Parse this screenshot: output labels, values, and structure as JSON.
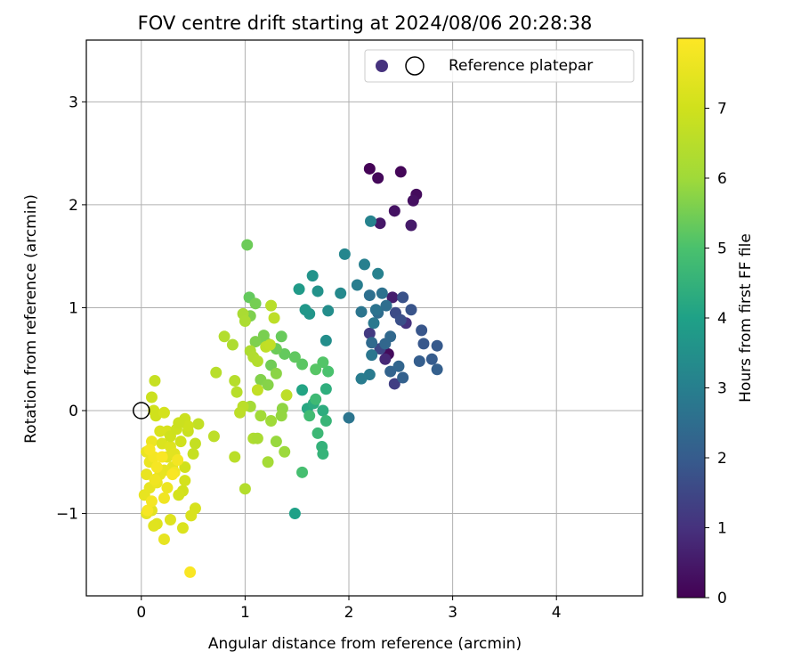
{
  "chart_data": {
    "type": "scatter",
    "title": "FOV centre drift starting at 2024/08/06 20:28:38",
    "xlabel": "Angular distance from reference (arcmin)",
    "ylabel": "Rotation from reference (arcmin)",
    "xlim": [
      -0.53,
      4.83
    ],
    "ylim": [
      -1.8,
      3.6
    ],
    "xticks": [
      0,
      1,
      2,
      3,
      4
    ],
    "yticks": [
      -1,
      0,
      1,
      2,
      3
    ],
    "grid": true,
    "legend": {
      "placement": "top-right",
      "entries": [
        "Reference platepar"
      ]
    },
    "colorbar": {
      "label": "Hours from first FF file",
      "min": 0,
      "max": 8,
      "ticks": [
        0,
        1,
        2,
        3,
        4,
        5,
        6,
        7
      ],
      "colormap": "viridis"
    },
    "reference_point": {
      "x": 0,
      "y": 0
    },
    "series": [
      {
        "values": [
          {
            "x": 2.2,
            "y": 2.35,
            "c": 0.05
          },
          {
            "x": 2.5,
            "y": 2.32,
            "c": 0.1
          },
          {
            "x": 2.28,
            "y": 2.26,
            "c": 0.15
          },
          {
            "x": 2.65,
            "y": 2.1,
            "c": 0.2
          },
          {
            "x": 2.62,
            "y": 2.04,
            "c": 0.3
          },
          {
            "x": 2.44,
            "y": 1.94,
            "c": 0.35
          },
          {
            "x": 2.3,
            "y": 1.82,
            "c": 0.45
          },
          {
            "x": 2.6,
            "y": 1.8,
            "c": 0.5
          },
          {
            "x": 2.38,
            "y": 0.55,
            "c": 0.2
          },
          {
            "x": 2.42,
            "y": 1.1,
            "c": 0.6
          },
          {
            "x": 2.35,
            "y": 0.5,
            "c": 0.8
          },
          {
            "x": 2.55,
            "y": 0.85,
            "c": 1.0
          },
          {
            "x": 2.2,
            "y": 0.75,
            "c": 1.2
          },
          {
            "x": 2.44,
            "y": 0.26,
            "c": 1.3
          },
          {
            "x": 2.3,
            "y": 0.6,
            "c": 1.5
          },
          {
            "x": 2.45,
            "y": 0.95,
            "c": 1.6
          },
          {
            "x": 2.5,
            "y": 0.88,
            "c": 1.7
          },
          {
            "x": 2.52,
            "y": 1.1,
            "c": 1.75
          },
          {
            "x": 2.6,
            "y": 0.98,
            "c": 1.8
          },
          {
            "x": 2.7,
            "y": 0.78,
            "c": 1.85
          },
          {
            "x": 2.72,
            "y": 0.65,
            "c": 1.9
          },
          {
            "x": 2.85,
            "y": 0.63,
            "c": 1.95
          },
          {
            "x": 2.8,
            "y": 0.5,
            "c": 2.0
          },
          {
            "x": 2.68,
            "y": 0.48,
            "c": 2.05
          },
          {
            "x": 2.85,
            "y": 0.4,
            "c": 2.1
          },
          {
            "x": 2.52,
            "y": 0.32,
            "c": 2.15
          },
          {
            "x": 2.4,
            "y": 0.38,
            "c": 2.2
          },
          {
            "x": 2.48,
            "y": 0.43,
            "c": 2.25
          },
          {
            "x": 2.35,
            "y": 0.65,
            "c": 2.3
          },
          {
            "x": 2.4,
            "y": 0.72,
            "c": 2.35
          },
          {
            "x": 2.22,
            "y": 0.66,
            "c": 2.4
          },
          {
            "x": 2.28,
            "y": 0.95,
            "c": 2.45
          },
          {
            "x": 2.36,
            "y": 1.02,
            "c": 2.5
          },
          {
            "x": 2.2,
            "y": 1.12,
            "c": 2.55
          },
          {
            "x": 2.32,
            "y": 1.14,
            "c": 2.6
          },
          {
            "x": 2.26,
            "y": 0.98,
            "c": 2.65
          },
          {
            "x": 2.12,
            "y": 0.96,
            "c": 2.7
          },
          {
            "x": 2.22,
            "y": 0.54,
            "c": 2.75
          },
          {
            "x": 2.24,
            "y": 0.85,
            "c": 2.8
          },
          {
            "x": 2.2,
            "y": 0.35,
            "c": 2.85
          },
          {
            "x": 2.12,
            "y": 0.31,
            "c": 2.9
          },
          {
            "x": 2.0,
            "y": -0.07,
            "c": 2.7
          },
          {
            "x": 2.08,
            "y": 1.22,
            "c": 2.95
          },
          {
            "x": 2.15,
            "y": 1.42,
            "c": 3.0
          },
          {
            "x": 2.28,
            "y": 1.33,
            "c": 3.05
          },
          {
            "x": 2.21,
            "y": 1.84,
            "c": 3.1
          },
          {
            "x": 1.96,
            "y": 1.52,
            "c": 3.2
          },
          {
            "x": 1.92,
            "y": 1.14,
            "c": 3.3
          },
          {
            "x": 1.8,
            "y": 0.97,
            "c": 3.4
          },
          {
            "x": 1.78,
            "y": 0.68,
            "c": 3.45
          },
          {
            "x": 1.7,
            "y": 1.16,
            "c": 3.55
          },
          {
            "x": 1.65,
            "y": 1.31,
            "c": 3.6
          },
          {
            "x": 1.62,
            "y": 0.94,
            "c": 3.65
          },
          {
            "x": 1.58,
            "y": 0.98,
            "c": 3.7
          },
          {
            "x": 1.52,
            "y": 1.18,
            "c": 3.8
          },
          {
            "x": 1.48,
            "y": -1.0,
            "c": 4.0
          },
          {
            "x": 1.55,
            "y": 0.2,
            "c": 4.1
          },
          {
            "x": 1.6,
            "y": 0.02,
            "c": 4.2
          },
          {
            "x": 1.66,
            "y": 0.07,
            "c": 4.3
          },
          {
            "x": 1.75,
            "y": 0.0,
            "c": 4.35
          },
          {
            "x": 1.78,
            "y": 0.21,
            "c": 4.4
          },
          {
            "x": 1.74,
            "y": -0.35,
            "c": 4.5
          },
          {
            "x": 1.75,
            "y": -0.42,
            "c": 4.55
          },
          {
            "x": 1.78,
            "y": -0.1,
            "c": 4.6
          },
          {
            "x": 1.7,
            "y": -0.22,
            "c": 4.7
          },
          {
            "x": 1.68,
            "y": 0.11,
            "c": 4.75
          },
          {
            "x": 1.62,
            "y": -0.05,
            "c": 4.8
          },
          {
            "x": 1.55,
            "y": -0.6,
            "c": 4.9
          },
          {
            "x": 1.8,
            "y": 0.38,
            "c": 5.0
          },
          {
            "x": 1.75,
            "y": 0.47,
            "c": 5.1
          },
          {
            "x": 1.68,
            "y": 0.4,
            "c": 5.15
          },
          {
            "x": 1.55,
            "y": 0.45,
            "c": 5.2
          },
          {
            "x": 1.48,
            "y": 0.52,
            "c": 5.25
          },
          {
            "x": 1.38,
            "y": 0.55,
            "c": 5.3
          },
          {
            "x": 1.35,
            "y": 0.72,
            "c": 5.35
          },
          {
            "x": 1.3,
            "y": 0.6,
            "c": 5.4
          },
          {
            "x": 1.25,
            "y": 0.44,
            "c": 5.45
          },
          {
            "x": 1.2,
            "y": 0.66,
            "c": 5.5
          },
          {
            "x": 1.18,
            "y": 0.73,
            "c": 5.55
          },
          {
            "x": 1.1,
            "y": 0.67,
            "c": 5.6
          },
          {
            "x": 1.15,
            "y": 0.3,
            "c": 5.65
          },
          {
            "x": 1.22,
            "y": 0.25,
            "c": 5.7
          },
          {
            "x": 1.3,
            "y": 0.36,
            "c": 5.75
          },
          {
            "x": 1.36,
            "y": 0.02,
            "c": 5.8
          },
          {
            "x": 1.35,
            "y": -0.05,
            "c": 5.85
          },
          {
            "x": 1.3,
            "y": -0.3,
            "c": 5.9
          },
          {
            "x": 1.38,
            "y": -0.4,
            "c": 5.95
          },
          {
            "x": 1.25,
            "y": -0.1,
            "c": 6.0
          },
          {
            "x": 1.15,
            "y": -0.05,
            "c": 6.05
          },
          {
            "x": 1.05,
            "y": 0.04,
            "c": 6.1
          },
          {
            "x": 1.02,
            "y": 1.61,
            "c": 5.4
          },
          {
            "x": 1.04,
            "y": 1.1,
            "c": 5.3
          },
          {
            "x": 1.1,
            "y": 1.04,
            "c": 5.5
          },
          {
            "x": 1.05,
            "y": 0.92,
            "c": 5.6
          },
          {
            "x": 0.98,
            "y": 0.94,
            "c": 6.2
          },
          {
            "x": 1.0,
            "y": 0.87,
            "c": 6.25
          },
          {
            "x": 1.05,
            "y": 0.58,
            "c": 6.3
          },
          {
            "x": 1.08,
            "y": 0.52,
            "c": 6.35
          },
          {
            "x": 1.12,
            "y": 0.48,
            "c": 6.4
          },
          {
            "x": 0.88,
            "y": 0.64,
            "c": 6.3
          },
          {
            "x": 0.8,
            "y": 0.72,
            "c": 6.4
          },
          {
            "x": 0.72,
            "y": 0.37,
            "c": 6.5
          },
          {
            "x": 0.9,
            "y": 0.29,
            "c": 6.45
          },
          {
            "x": 0.92,
            "y": 0.18,
            "c": 6.5
          },
          {
            "x": 0.98,
            "y": 0.04,
            "c": 6.55
          },
          {
            "x": 0.95,
            "y": -0.02,
            "c": 6.6
          },
          {
            "x": 0.9,
            "y": -0.45,
            "c": 6.55
          },
          {
            "x": 1.0,
            "y": -0.76,
            "c": 6.4
          },
          {
            "x": 1.08,
            "y": -0.27,
            "c": 6.3
          },
          {
            "x": 1.12,
            "y": -0.27,
            "c": 6.2
          },
          {
            "x": 1.22,
            "y": -0.5,
            "c": 6.1
          },
          {
            "x": 1.25,
            "y": 1.02,
            "c": 6.5
          },
          {
            "x": 1.28,
            "y": 0.9,
            "c": 6.6
          },
          {
            "x": 1.2,
            "y": 0.62,
            "c": 6.65
          },
          {
            "x": 1.24,
            "y": 0.64,
            "c": 6.7
          },
          {
            "x": 1.4,
            "y": 0.15,
            "c": 6.6
          },
          {
            "x": 1.12,
            "y": 0.2,
            "c": 6.7
          },
          {
            "x": 0.7,
            "y": -0.25,
            "c": 6.6
          },
          {
            "x": 0.55,
            "y": -0.13,
            "c": 6.7
          },
          {
            "x": 0.52,
            "y": -0.32,
            "c": 6.75
          },
          {
            "x": 0.5,
            "y": -0.42,
            "c": 6.8
          },
          {
            "x": 0.45,
            "y": -0.2,
            "c": 6.85
          },
          {
            "x": 0.42,
            "y": -0.08,
            "c": 6.9
          },
          {
            "x": 0.45,
            "y": -0.15,
            "c": 6.95
          },
          {
            "x": 0.38,
            "y": -0.3,
            "c": 7.0
          },
          {
            "x": 0.42,
            "y": -0.55,
            "c": 7.0
          },
          {
            "x": 0.4,
            "y": -0.78,
            "c": 7.05
          },
          {
            "x": 0.36,
            "y": -0.82,
            "c": 7.1
          },
          {
            "x": 0.42,
            "y": -0.68,
            "c": 7.1
          },
          {
            "x": 0.52,
            "y": -0.95,
            "c": 7.15
          },
          {
            "x": 0.48,
            "y": -1.02,
            "c": 7.2
          },
          {
            "x": 0.4,
            "y": -1.14,
            "c": 7.25
          },
          {
            "x": 0.28,
            "y": -1.06,
            "c": 7.3
          },
          {
            "x": 0.15,
            "y": -1.1,
            "c": 7.3
          },
          {
            "x": 0.12,
            "y": -1.12,
            "c": 7.35
          },
          {
            "x": 0.1,
            "y": -0.97,
            "c": 7.4
          },
          {
            "x": 0.05,
            "y": -1.0,
            "c": 7.45
          },
          {
            "x": 0.03,
            "y": -0.82,
            "c": 7.5
          },
          {
            "x": 0.08,
            "y": -0.75,
            "c": 7.5
          },
          {
            "x": 0.05,
            "y": -0.62,
            "c": 7.55
          },
          {
            "x": 0.08,
            "y": -0.5,
            "c": 7.6
          },
          {
            "x": 0.05,
            "y": -0.4,
            "c": 7.6
          },
          {
            "x": 0.1,
            "y": -0.3,
            "c": 7.65
          },
          {
            "x": 0.14,
            "y": -0.05,
            "c": 7.0
          },
          {
            "x": 0.12,
            "y": 0.0,
            "c": 7.0
          },
          {
            "x": 0.1,
            "y": 0.13,
            "c": 6.9
          },
          {
            "x": 0.13,
            "y": 0.29,
            "c": 6.8
          },
          {
            "x": 0.22,
            "y": -0.02,
            "c": 7.1
          },
          {
            "x": 0.25,
            "y": -0.2,
            "c": 7.15
          },
          {
            "x": 0.18,
            "y": -0.2,
            "c": 7.2
          },
          {
            "x": 0.2,
            "y": -0.32,
            "c": 7.25
          },
          {
            "x": 0.28,
            "y": -0.35,
            "c": 7.3
          },
          {
            "x": 0.25,
            "y": -0.45,
            "c": 7.35
          },
          {
            "x": 0.32,
            "y": -0.42,
            "c": 7.4
          },
          {
            "x": 0.3,
            "y": -0.55,
            "c": 7.45
          },
          {
            "x": 0.22,
            "y": -0.58,
            "c": 7.5
          },
          {
            "x": 0.18,
            "y": -0.62,
            "c": 7.55
          },
          {
            "x": 0.15,
            "y": -0.7,
            "c": 7.6
          },
          {
            "x": 0.25,
            "y": -0.75,
            "c": 7.65
          },
          {
            "x": 0.22,
            "y": -0.85,
            "c": 7.7
          },
          {
            "x": 0.32,
            "y": -0.6,
            "c": 7.75
          },
          {
            "x": 0.35,
            "y": -0.48,
            "c": 7.8
          },
          {
            "x": 0.12,
            "y": -0.45,
            "c": 7.8
          },
          {
            "x": 0.08,
            "y": -0.38,
            "c": 7.85
          },
          {
            "x": 0.15,
            "y": -0.55,
            "c": 7.85
          },
          {
            "x": 0.2,
            "y": -0.45,
            "c": 7.9
          },
          {
            "x": 0.3,
            "y": -0.62,
            "c": 7.9
          },
          {
            "x": 0.22,
            "y": -1.25,
            "c": 7.5
          },
          {
            "x": 0.47,
            "y": -1.57,
            "c": 7.9
          },
          {
            "x": 0.06,
            "y": -0.97,
            "c": 7.85
          },
          {
            "x": 0.1,
            "y": -0.88,
            "c": 7.8
          },
          {
            "x": 0.13,
            "y": -0.67,
            "c": 7.7
          },
          {
            "x": 0.28,
            "y": -0.25,
            "c": 7.0
          },
          {
            "x": 0.34,
            "y": -0.18,
            "c": 6.95
          },
          {
            "x": 0.36,
            "y": -0.12,
            "c": 6.9
          }
        ]
      }
    ]
  }
}
